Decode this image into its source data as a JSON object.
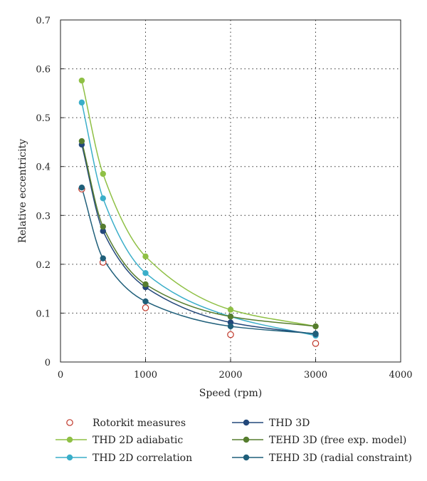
{
  "chart_data": {
    "type": "line",
    "xlabel": "Speed (rpm)",
    "ylabel": "Relative eccentricity",
    "xlim": [
      0,
      4000
    ],
    "ylim": [
      0,
      0.7
    ],
    "xticks": [
      "0",
      "1000",
      "2000",
      "3000",
      "4000"
    ],
    "yticks": [
      "0",
      "0.1",
      "0.2",
      "0.3",
      "0.4",
      "0.5",
      "0.6",
      "0.7"
    ],
    "grid": true,
    "legend_position": "bottom",
    "series": [
      {
        "name": "Rotorkit measures",
        "style": "hollow-marker",
        "color": "#c0392b",
        "x": [
          250,
          500,
          1000,
          2000,
          3000
        ],
        "y": [
          0.354,
          0.204,
          0.111,
          0.056,
          0.038
        ]
      },
      {
        "name": "THD 2D adiabatic",
        "style": "line-marker",
        "color": "#8fc045",
        "x": [
          250,
          500,
          1000,
          2000,
          3000
        ],
        "y": [
          0.576,
          0.385,
          0.216,
          0.107,
          0.073
        ]
      },
      {
        "name": "THD 2D correlation",
        "style": "line-marker",
        "color": "#3aaec9",
        "x": [
          250,
          500,
          1000,
          2000,
          3000
        ],
        "y": [
          0.531,
          0.335,
          0.182,
          0.093,
          0.054
        ]
      },
      {
        "name": "THD 3D",
        "style": "line-marker",
        "color": "#23487a",
        "x": [
          250,
          500,
          1000,
          2000,
          3000
        ],
        "y": [
          0.445,
          0.268,
          0.153,
          0.081,
          0.057
        ]
      },
      {
        "name": "TEHD 3D (free exp. model)",
        "style": "line-marker",
        "color": "#567d2e",
        "x": [
          250,
          500,
          1000,
          2000,
          3000
        ],
        "y": [
          0.452,
          0.277,
          0.159,
          0.093,
          0.073
        ]
      },
      {
        "name": "TEHD 3D (radial constraint)",
        "style": "line-marker",
        "color": "#1f5f7a",
        "x": [
          250,
          500,
          1000,
          2000,
          3000
        ],
        "y": [
          0.357,
          0.212,
          0.124,
          0.073,
          0.058
        ]
      }
    ]
  }
}
